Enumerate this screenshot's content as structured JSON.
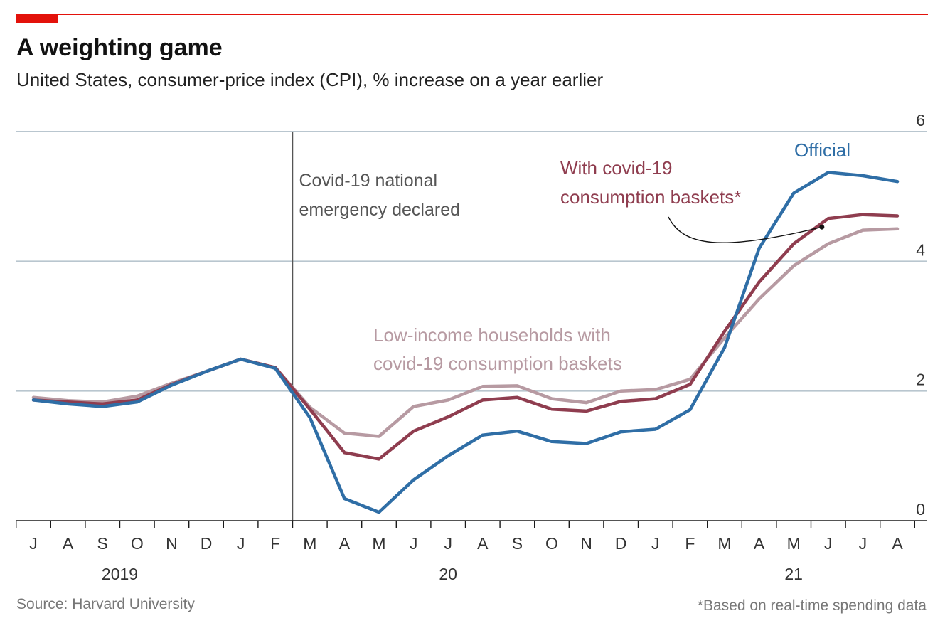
{
  "colors": {
    "accent": "#e3120b",
    "official": "#2f6ea6",
    "covid_baskets": "#8f3d4f",
    "low_income": "#b79aa2",
    "grid": "#b9c6cf",
    "axis": "#1a1a1a",
    "event_line": "#555555",
    "annotation": "#555555"
  },
  "header": {
    "title": "A weighting game",
    "subtitle": "United States, consumer-price index (CPI), % increase on a year earlier"
  },
  "footer": {
    "source": "Source: Harvard University",
    "note": "*Based on real-time spending data"
  },
  "chart_data": {
    "type": "line",
    "title": "A weighting game",
    "subtitle": "United States, consumer-price index (CPI), % increase on a year earlier",
    "x_months": [
      "J",
      "A",
      "S",
      "O",
      "N",
      "D",
      "J",
      "F",
      "M",
      "A",
      "M",
      "J",
      "J",
      "A",
      "S",
      "O",
      "N",
      "D",
      "J",
      "F",
      "M",
      "A",
      "M",
      "J",
      "J",
      "A"
    ],
    "x_period": [
      "2019-07",
      "2019-08",
      "2019-09",
      "2019-10",
      "2019-11",
      "2019-12",
      "2020-01",
      "2020-02",
      "2020-03",
      "2020-04",
      "2020-05",
      "2020-06",
      "2020-07",
      "2020-08",
      "2020-09",
      "2020-10",
      "2020-11",
      "2020-12",
      "2021-01",
      "2021-02",
      "2021-03",
      "2021-04",
      "2021-05",
      "2021-06",
      "2021-07",
      "2021-08"
    ],
    "year_labels": [
      {
        "label": "2019",
        "month_index": 2.5
      },
      {
        "label": "20",
        "month_index": 12
      },
      {
        "label": "21",
        "month_index": 22
      }
    ],
    "ylim": [
      0,
      6
    ],
    "yticks": [
      0,
      2,
      4,
      6
    ],
    "ytick_labels": [
      "0",
      "2",
      "4",
      "6"
    ],
    "ylabel": "",
    "xlabel": "",
    "grid": true,
    "legend": "inline labels",
    "series": [
      {
        "name": "Low-income households with covid-19 consumption baskets",
        "label_lines": [
          "Low-income households with",
          "covid-19 consumption baskets"
        ],
        "color_key": "low_income",
        "values": [
          1.9,
          1.85,
          1.83,
          1.92,
          2.12,
          2.3,
          2.49,
          2.36,
          1.75,
          1.35,
          1.3,
          1.76,
          1.86,
          2.07,
          2.08,
          1.88,
          1.82,
          2.0,
          2.02,
          2.18,
          2.82,
          3.42,
          3.93,
          4.27,
          4.48,
          4.5
        ]
      },
      {
        "name": "With covid-19 consumption baskets*",
        "label_lines": [
          "With covid-19",
          "consumption baskets*"
        ],
        "color_key": "covid_baskets",
        "values": [
          1.86,
          1.83,
          1.8,
          1.86,
          2.1,
          2.3,
          2.49,
          2.36,
          1.72,
          1.05,
          0.95,
          1.38,
          1.6,
          1.86,
          1.9,
          1.72,
          1.69,
          1.84,
          1.88,
          2.1,
          2.92,
          3.68,
          4.27,
          4.66,
          4.72,
          4.7
        ]
      },
      {
        "name": "Official",
        "label_lines": [
          "Official"
        ],
        "color_key": "official",
        "values": [
          1.86,
          1.8,
          1.76,
          1.83,
          2.09,
          2.3,
          2.49,
          2.35,
          1.59,
          0.34,
          0.13,
          0.63,
          1.0,
          1.32,
          1.38,
          1.22,
          1.19,
          1.37,
          1.41,
          1.71,
          2.67,
          4.2,
          5.05,
          5.37,
          5.32,
          5.23
        ]
      }
    ],
    "event": {
      "month_index": 8,
      "label_lines": [
        "Covid-19 national",
        "emergency declared"
      ]
    }
  }
}
